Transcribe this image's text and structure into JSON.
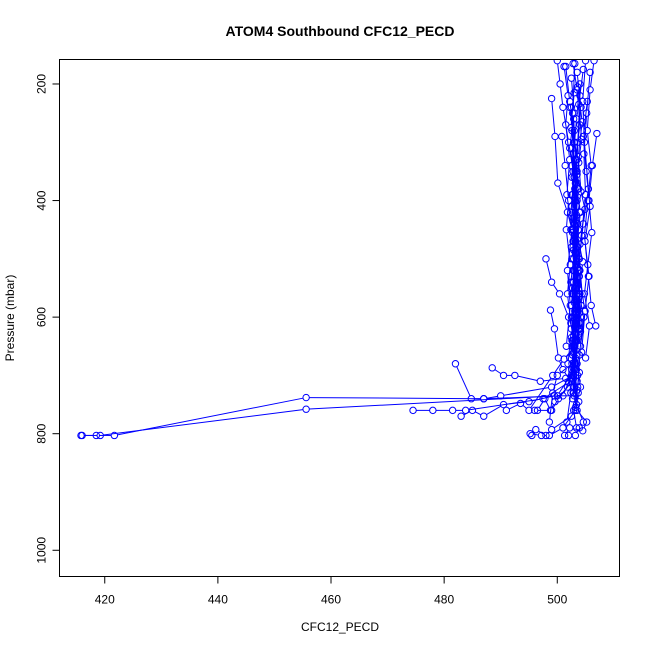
{
  "chart_data": {
    "type": "line",
    "title": "ATOM4 Southbound CFC12_PECD",
    "xlabel": "CFC12_PECD",
    "ylabel": "Pressure (mbar)",
    "xlim": [
      412,
      511
    ],
    "ylim": [
      1045,
      158
    ],
    "y_reversed": true,
    "x_ticks": [
      420,
      440,
      460,
      480,
      500
    ],
    "y_ticks": [
      200,
      400,
      600,
      800,
      1000
    ],
    "grid": false,
    "legend": "none",
    "color": "#0000ff",
    "marker": "open-circle",
    "series": [
      {
        "x": [
          415.8,
          418.5,
          421.7,
          455.6,
          487.0,
          501.0,
          502.5,
          503.0,
          502.8,
          503.2,
          502.9,
          503.5,
          502.7,
          503.1
        ],
        "y": [
          803,
          803,
          803,
          738,
          740,
          735,
          700,
          650,
          600,
          550,
          450,
          350,
          250,
          165
        ]
      },
      {
        "x": [
          416.0,
          419.2,
          455.6,
          500.0,
          503.0,
          502.6,
          504.0,
          502.8,
          503.2,
          502.5
        ],
        "y": [
          803,
          803,
          758,
          735,
          690,
          640,
          560,
          470,
          370,
          240
        ]
      },
      {
        "x": [
          474.5,
          478.0,
          481.5,
          483.8,
          497.5,
          502.0,
          503.5,
          502.4,
          503.9,
          502.6,
          503.0
        ],
        "y": [
          760,
          760,
          760,
          760,
          740,
          712,
          680,
          610,
          520,
          410,
          300
        ]
      },
      {
        "x": [
          482.0,
          484.8,
          487.0,
          490.0,
          499.0,
          502.8,
          503.0,
          504.2,
          502.5,
          503.6,
          502.9
        ],
        "y": [
          680,
          740,
          740,
          735,
          720,
          700,
          660,
          580,
          480,
          380,
          260
        ]
      },
      {
        "x": [
          488.5,
          490.5,
          492.5,
          497.0,
          501.5,
          503.4,
          502.7,
          503.8,
          502.4,
          503.2
        ],
        "y": [
          687,
          700,
          700,
          710,
          705,
          690,
          640,
          560,
          450,
          330
        ]
      },
      {
        "x": [
          483.0,
          485.0,
          487.0,
          490.5,
          495.0,
          499.5,
          503.0,
          502.2,
          503.6,
          502.8,
          503.3
        ],
        "y": [
          770,
          760,
          770,
          750,
          745,
          735,
          735,
          670,
          590,
          470,
          350
        ]
      },
      {
        "x": [
          495.5,
          496.2,
          498.0,
          499.0,
          502.5,
          503.8,
          502.6,
          503.4,
          502.9,
          503.1
        ],
        "y": [
          803,
          793,
          803,
          793,
          770,
          745,
          690,
          600,
          500,
          380
        ]
      },
      {
        "x": [
          495.2,
          497.2,
          498.6,
          501.0,
          503.2,
          504.1,
          503.0,
          502.7,
          503.9
        ],
        "y": [
          800,
          803,
          803,
          790,
          760,
          720,
          640,
          540,
          420
        ]
      },
      {
        "x": [
          496.0,
          499.0,
          500.2,
          502.6,
          503.3,
          502.4,
          503.6,
          502.9
        ],
        "y": [
          760,
          760,
          740,
          710,
          630,
          540,
          440,
          320
        ]
      },
      {
        "x": [
          496.5,
          497.8,
          498.8,
          499.6,
          501.8,
          503.0,
          504.0,
          502.8,
          503.5,
          502.6
        ],
        "y": [
          760,
          740,
          760,
          745,
          720,
          680,
          610,
          520,
          400,
          280
        ]
      },
      {
        "x": [
          491.0,
          493.5,
          495.0,
          499.2,
          501.2,
          503.1,
          502.5,
          503.8,
          502.7
        ],
        "y": [
          760,
          748,
          760,
          700,
          672,
          650,
          600,
          500,
          390
        ]
      },
      {
        "x": [
          501.3,
          502.2,
          504.5,
          505.2,
          503.5,
          502.8,
          503.6,
          504.0,
          503.2
        ],
        "y": [
          803,
          790,
          795,
          780,
          760,
          730,
          640,
          520,
          400
        ]
      },
      {
        "x": [
          502.0,
          503.2,
          503.9,
          504.6,
          503.4,
          502.9,
          504.1,
          503.3,
          502.8
        ],
        "y": [
          803,
          803,
          790,
          780,
          750,
          700,
          600,
          470,
          350
        ]
      },
      {
        "x": [
          498.6,
          499.2,
          500.0,
          502.6,
          503.0,
          503.8,
          502.7,
          503.5,
          504.0
        ],
        "y": [
          780,
          730,
          700,
          680,
          650,
          560,
          450,
          330,
          220
        ]
      },
      {
        "x": [
          498.0,
          499.0,
          500.4,
          502.0,
          503.3,
          502.5,
          503.7,
          502.9,
          503.4
        ],
        "y": [
          500,
          540,
          560,
          600,
          640,
          700,
          730,
          760,
          790
        ]
      },
      {
        "x": [
          498.8,
          499.5,
          500.2,
          501.0,
          503.0,
          503.6,
          502.8,
          504.2
        ],
        "y": [
          588,
          620,
          670,
          690,
          720,
          700,
          650,
          580
        ]
      },
      {
        "x": [
          499.0,
          499.6,
          500.1,
          501.8,
          502.6,
          503.4,
          502.8,
          503.9,
          503.1,
          502.7
        ],
        "y": [
          225,
          290,
          370,
          420,
          450,
          500,
          560,
          620,
          680,
          740
        ]
      },
      {
        "x": [
          500.0,
          500.5,
          501.0,
          502.0,
          503.0,
          502.4,
          503.6,
          502.9,
          503.3
        ],
        "y": [
          160,
          200,
          240,
          300,
          360,
          420,
          480,
          540,
          610
        ]
      },
      {
        "x": [
          501.5,
          502.2,
          503.0,
          502.5,
          503.4,
          502.8,
          503.9,
          503.1,
          502.6,
          503.5
        ],
        "y": [
          170,
          230,
          280,
          340,
          410,
          470,
          530,
          590,
          650,
          710
        ]
      },
      {
        "x": [
          502.8,
          503.5,
          504.0,
          503.2,
          502.6,
          503.7,
          503.0,
          502.5,
          503.4
        ],
        "y": [
          165,
          210,
          270,
          330,
          390,
          450,
          520,
          580,
          640
        ]
      },
      {
        "x": [
          503.5,
          504.2,
          503.6,
          503.0,
          504.1,
          503.3,
          502.7,
          503.8,
          503.2,
          502.9
        ],
        "y": [
          180,
          240,
          300,
          360,
          420,
          490,
          550,
          610,
          670,
          730
        ]
      },
      {
        "x": [
          504.0,
          503.4,
          502.9,
          503.8,
          503.1,
          502.6,
          503.5,
          504.0,
          503.2
        ],
        "y": [
          200,
          260,
          320,
          380,
          440,
          500,
          560,
          620,
          680
        ]
      },
      {
        "x": [
          505.0,
          504.5,
          504.8,
          505.5,
          504.6,
          503.9,
          504.4,
          503.7
        ],
        "y": [
          160,
          230,
          300,
          380,
          440,
          500,
          560,
          630
        ]
      },
      {
        "x": [
          505.8,
          505.2,
          504.7,
          505.0,
          504.3,
          503.8,
          504.9,
          504.1,
          503.6
        ],
        "y": [
          180,
          250,
          320,
          390,
          460,
          520,
          590,
          650,
          720
        ]
      },
      {
        "x": [
          506.5,
          505.8,
          505.3,
          506.0,
          505.4,
          504.8,
          505.6,
          504.9,
          504.3
        ],
        "y": [
          160,
          210,
          280,
          340,
          400,
          460,
          530,
          590,
          660
        ]
      },
      {
        "x": [
          507.0,
          506.2,
          505.6,
          506.1,
          505.4,
          504.8,
          505.7,
          505.0
        ],
        "y": [
          285,
          340,
          400,
          455,
          510,
          560,
          615,
          670
        ]
      },
      {
        "x": [
          506.8,
          506.0,
          505.5,
          504.9,
          505.8,
          505.1,
          504.6,
          505.3
        ],
        "y": [
          615,
          580,
          530,
          470,
          410,
          350,
          290,
          230
        ]
      },
      {
        "x": [
          500.8,
          501.4,
          502.0,
          501.6,
          502.3,
          501.8,
          502.5,
          501.9,
          502.4,
          501.7
        ],
        "y": [
          290,
          340,
          400,
          450,
          510,
          560,
          620,
          680,
          730,
          780
        ]
      },
      {
        "x": [
          501.2,
          501.9,
          501.5,
          502.2,
          501.7,
          502.6,
          501.8,
          502.3,
          501.6
        ],
        "y": [
          170,
          220,
          270,
          330,
          390,
          450,
          520,
          580,
          650
        ]
      },
      {
        "x": [
          502.5,
          503.0,
          502.2,
          503.5,
          502.8,
          503.3,
          502.6,
          503.7,
          502.9,
          503.4
        ],
        "y": [
          190,
          250,
          310,
          370,
          430,
          490,
          560,
          620,
          690,
          750
        ]
      },
      {
        "x": [
          503.0,
          502.4,
          503.8,
          503.1,
          502.7,
          503.6,
          503.0,
          502.5,
          503.9,
          503.2
        ],
        "y": [
          215,
          275,
          335,
          395,
          455,
          515,
          575,
          635,
          695,
          755
        ]
      },
      {
        "x": [
          504.6,
          503.8,
          504.3,
          503.5,
          504.9,
          504.0,
          503.4,
          504.7,
          503.9
        ],
        "y": [
          175,
          235,
          295,
          355,
          415,
          475,
          540,
          600,
          665
        ]
      },
      {
        "x": [
          503.6,
          504.4,
          503.7,
          504.2,
          503.3,
          504.5,
          503.8,
          504.1
        ],
        "y": [
          205,
          265,
          325,
          385,
          445,
          505,
          565,
          625
        ]
      },
      {
        "x": [
          502.2,
          503.0,
          502.6,
          503.4,
          502.9,
          503.7,
          503.1,
          502.7,
          503.5
        ],
        "y": [
          240,
          300,
          360,
          425,
          485,
          545,
          605,
          665,
          725
        ]
      }
    ]
  }
}
